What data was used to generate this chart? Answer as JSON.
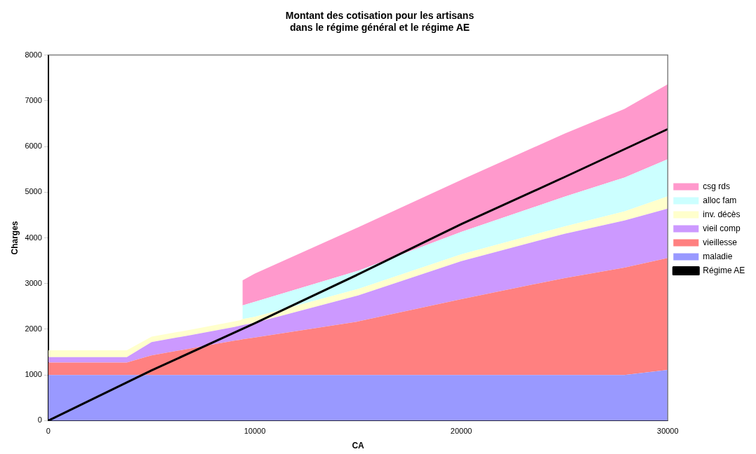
{
  "chart_data": {
    "type": "area",
    "title": "Montant des cotisation pour les artisans\ndans le régime général et le régime AE",
    "xlabel": "CA",
    "ylabel": "Charges",
    "stacked": true,
    "x": [
      0,
      3800,
      5000,
      7000,
      9000,
      9300,
      9400,
      10000,
      15000,
      20000,
      25000,
      27900,
      30000
    ],
    "series": [
      {
        "name": "maladie",
        "color": "#9999ff",
        "values": [
          1000,
          1000,
          1000,
          1000,
          1000,
          1000,
          1000,
          1000,
          1000,
          1000,
          1000,
          1000,
          1110
        ]
      },
      {
        "name": "vieillesse",
        "color": "#ff8080",
        "values": [
          270,
          270,
          430,
          590,
          750,
          770,
          780,
          820,
          1170,
          1660,
          2120,
          2350,
          2450
        ]
      },
      {
        "name": "vieil comp",
        "color": "#cc99ff",
        "values": [
          120,
          120,
          290,
          290,
          300,
          310,
          310,
          320,
          570,
          830,
          970,
          1030,
          1080
        ]
      },
      {
        "name": "inv. décès",
        "color": "#ffffcc",
        "values": [
          150,
          150,
          120,
          120,
          120,
          120,
          130,
          130,
          140,
          150,
          160,
          200,
          270
        ]
      },
      {
        "name": "alloc fam",
        "color": "#ccffff",
        "values": [
          null,
          null,
          null,
          null,
          null,
          null,
          300,
          330,
          400,
          490,
          650,
          740,
          810
        ]
      },
      {
        "name": "csg rds",
        "color": "#ff99cc",
        "values": [
          null,
          null,
          null,
          null,
          null,
          null,
          550,
          620,
          950,
          1140,
          1380,
          1500,
          1640
        ]
      },
      {
        "name": "Régime AE",
        "type": "line",
        "color": "#000000",
        "x": [
          0,
          5000,
          10000,
          15000,
          20000,
          25000,
          30000
        ],
        "values": [
          0,
          1100,
          2130,
          3200,
          4300,
          5330,
          6380
        ]
      }
    ],
    "xlim": [
      0,
      30000
    ],
    "xticks": [
      0,
      10000,
      20000,
      30000
    ],
    "ylim": [
      0,
      8000
    ],
    "yticks": [
      0,
      1000,
      2000,
      3000,
      4000,
      5000,
      6000,
      7000,
      8000
    ],
    "grid": false,
    "legend": "right",
    "marker": "none"
  }
}
